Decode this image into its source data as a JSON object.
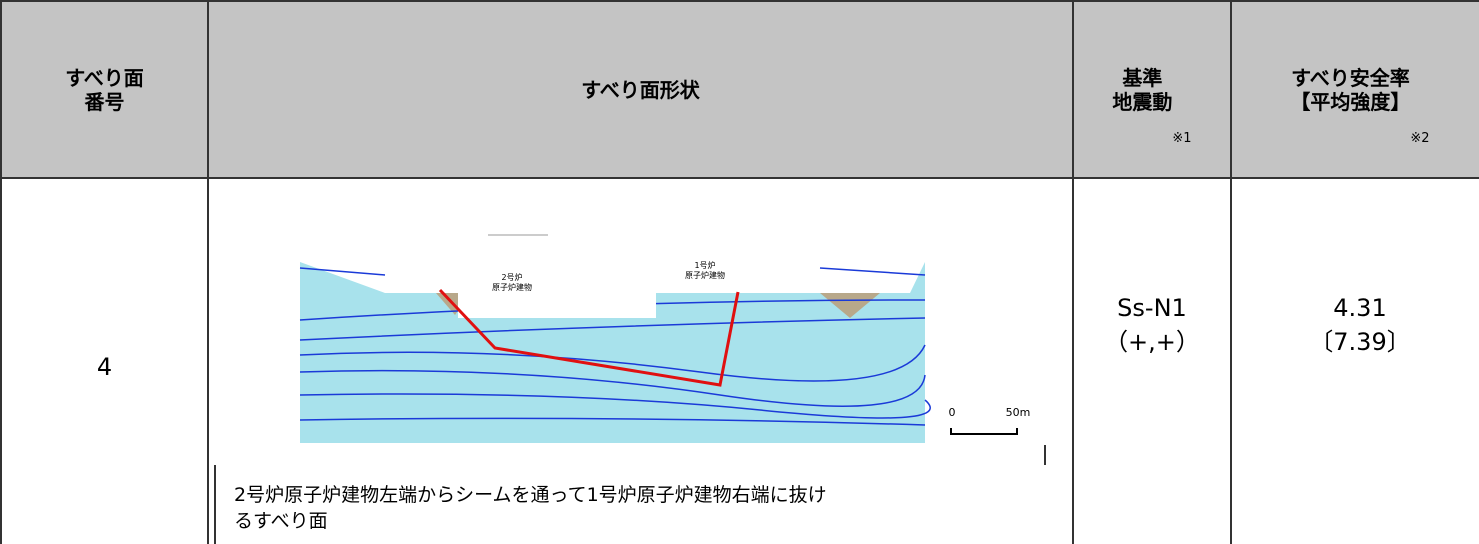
{
  "header": {
    "col1": "すべり面\n番号",
    "col2": "すべり面形状",
    "col3": "基準\n地震動",
    "col3_note": "※1",
    "col4": "すべり安全率\n【平均強度】",
    "col4_note": "※2"
  },
  "row": {
    "number": "4",
    "figure": {
      "labels": [
        "2号炉\n原子炉建物",
        "1号炉\n原子炉建物"
      ],
      "scale_start": "0",
      "scale_end": "50m"
    },
    "caption": "2号炉原子炉建物左端からシームを通って1号炉原子炉建物右端に抜けるすべり面",
    "ground_motion": "Ss-N1\n（+,+）",
    "safety_factor": "4.31\n〔7.39〕"
  }
}
